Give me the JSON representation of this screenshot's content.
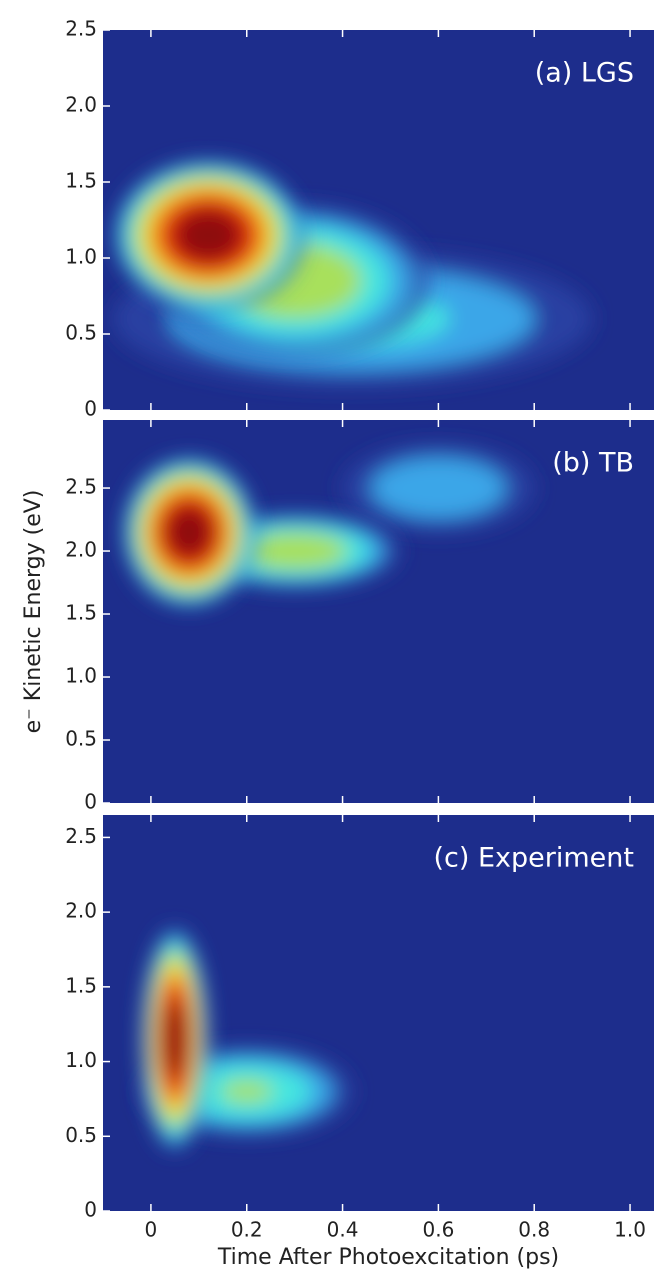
{
  "chart_data": [
    {
      "type": "heatmap",
      "annotation": "(a) LGS",
      "xlim": [
        -0.1,
        1.05
      ],
      "ylim": [
        0,
        2.5
      ],
      "yticks": [
        0,
        0.5,
        {
          "value": 1,
          "label": "1.0"
        },
        1.5,
        {
          "value": 2,
          "label": "2.0"
        },
        2.5
      ],
      "xticks": [
        0,
        0.2,
        0.4,
        0.6,
        0.8,
        {
          "value": 1,
          "label": "1.0"
        }
      ],
      "background": "#1d2d8c",
      "colormap": [
        "#2c44a8",
        "#3aa6e8",
        "#44e6e0",
        "#a8e05c",
        "#f2e632",
        "#f4861e",
        "#e0200e",
        "#8e0c0c"
      ],
      "intensity_peaks": [
        {
          "x": 0.42,
          "y": 0.6,
          "sx": 0.5,
          "sy": 0.45,
          "level": 0.3
        },
        {
          "x": 0.3,
          "y": 0.85,
          "sx": 0.28,
          "sy": 0.5,
          "level": 0.5
        },
        {
          "x": 0.12,
          "y": 1.15,
          "sx": 0.2,
          "sy": 0.5,
          "level": 1
        }
      ]
    },
    {
      "type": "heatmap",
      "annotation": "(b) TB",
      "ylabel": "e⁻ Kinetic Energy (eV)",
      "xlim": [
        -0.1,
        1.05
      ],
      "ylim": [
        0,
        3.04
      ],
      "yticks": [
        0,
        0.5,
        {
          "value": 1,
          "label": "1.0"
        },
        1.5,
        {
          "value": 2,
          "label": "2.0"
        },
        2.5
      ],
      "xticks": [
        0,
        0.2,
        0.4,
        0.6,
        0.8,
        {
          "value": 1,
          "label": "1.0"
        }
      ],
      "background": "#1d2d8c",
      "colormap": [
        "#2c44a8",
        "#3aa6e8",
        "#44e6e0",
        "#a8e05c",
        "#f2e632",
        "#f4861e",
        "#e0200e",
        "#8e0c0c"
      ],
      "intensity_peaks": [
        {
          "x": 0.6,
          "y": 2.5,
          "sx": 0.2,
          "sy": 0.35,
          "level": 0.25
        },
        {
          "x": 0.3,
          "y": 2.0,
          "sx": 0.22,
          "sy": 0.3,
          "level": 0.5
        },
        {
          "x": 0.08,
          "y": 2.15,
          "sx": 0.14,
          "sy": 0.6,
          "level": 1
        }
      ]
    },
    {
      "type": "heatmap",
      "annotation": "(c) Experiment",
      "xlabel": "Time After Photoexcitation (ps)",
      "xlim": [
        -0.1,
        1.05
      ],
      "ylim": [
        0,
        2.65
      ],
      "yticks": [
        0,
        0.5,
        {
          "value": 1,
          "label": "1.0"
        },
        1.5,
        {
          "value": 2,
          "label": "2.0"
        },
        2.5
      ],
      "xticks": [
        0,
        0.2,
        0.4,
        0.6,
        0.8,
        {
          "value": 1,
          "label": "1.0"
        }
      ],
      "background": "#1d2d8c",
      "colormap": [
        "#2c44a8",
        "#3aa6e8",
        "#44e6e0",
        "#a8e05c",
        "#f2e632",
        "#f4861e",
        "#e0200e",
        "#8e0c0c"
      ],
      "intensity_peaks": [
        {
          "x": 0.2,
          "y": 0.8,
          "sx": 0.22,
          "sy": 0.3,
          "level": 0.4
        },
        {
          "x": 0.05,
          "y": 1.15,
          "sx": 0.07,
          "sy": 0.75,
          "level": 1
        }
      ]
    }
  ]
}
